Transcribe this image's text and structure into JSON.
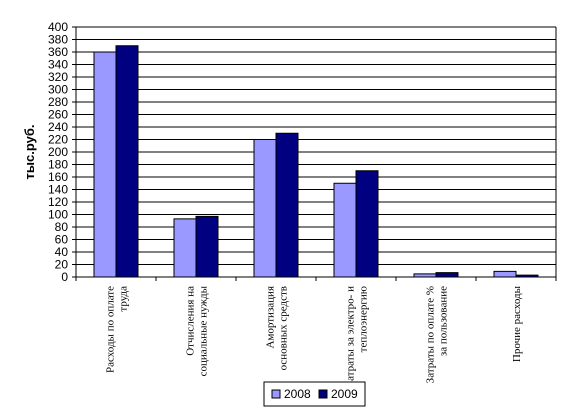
{
  "chart_data": {
    "type": "bar",
    "title": "",
    "xlabel": "",
    "ylabel": "тыс.руб.",
    "ylim": [
      0,
      400
    ],
    "ytick_step": 20,
    "grid": true,
    "legend_position": "bottom",
    "categories": [
      [
        "Расходы по оплате",
        "труда"
      ],
      [
        "Отчисления на",
        "социальные нужды"
      ],
      [
        "Амортизация",
        "основных средств"
      ],
      [
        "Затраты за электро- и",
        "теплоэнергию"
      ],
      [
        "Затраты по оплате %",
        "за пользование"
      ],
      [
        "Прочие расходы"
      ]
    ],
    "series": [
      {
        "name": "2008",
        "color": "#9999ff",
        "values": [
          360,
          93,
          220,
          150,
          5,
          9
        ]
      },
      {
        "name": "2009",
        "color": "#000080",
        "values": [
          370,
          97,
          230,
          170,
          7,
          3
        ]
      }
    ]
  }
}
